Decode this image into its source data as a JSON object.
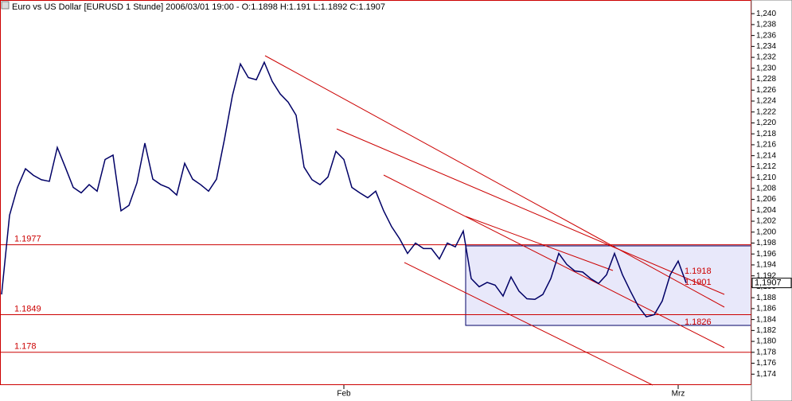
{
  "chart_data": {
    "type": "line",
    "title": "Euro vs US Dollar [EURUSD  1 Stunde] 2006/03/01 19:00 - O:1.1898 H:1.191 L:1.1892 C:1.1907",
    "categories": [
      null,
      null,
      null,
      null,
      null,
      null,
      null,
      null,
      null,
      null,
      null,
      null,
      null,
      null,
      null,
      null,
      null,
      null,
      null,
      null,
      null,
      null,
      null,
      null,
      null,
      null,
      null,
      null,
      null,
      null,
      null,
      null,
      null,
      null,
      null,
      null,
      null,
      null,
      null,
      null,
      null,
      null,
      null,
      "Feb",
      null,
      null,
      null,
      null,
      null,
      null,
      null,
      null,
      null,
      null,
      null,
      null,
      null,
      null,
      null,
      null,
      null,
      null,
      null,
      null,
      null,
      null,
      null,
      null,
      null,
      null,
      null,
      null,
      null,
      null,
      null,
      null,
      null,
      null,
      null,
      null,
      null,
      null,
      null,
      null,
      null,
      "Mrz",
      null
    ],
    "series": [
      {
        "name": "EURUSD",
        "color": "#000066",
        "values": [
          1.1886,
          1.2031,
          1.2082,
          1.2116,
          1.2104,
          1.2096,
          1.2093,
          1.2155,
          1.2119,
          1.2082,
          1.2072,
          1.2087,
          1.2075,
          1.2133,
          1.2141,
          1.2039,
          1.2049,
          1.209,
          1.2163,
          1.2097,
          1.2087,
          1.2081,
          1.2068,
          1.2126,
          1.2097,
          1.2087,
          1.2075,
          1.2097,
          1.217,
          1.225,
          1.2308,
          1.2283,
          1.2279,
          1.2311,
          1.2276,
          1.2253,
          1.2238,
          1.2214,
          1.2119,
          1.2096,
          1.2087,
          1.2101,
          1.2148,
          1.2133,
          1.2082,
          1.2072,
          1.2063,
          1.2075,
          1.2039,
          1.201,
          1.1988,
          1.1961,
          1.198,
          1.197,
          1.197,
          1.1951,
          1.198,
          1.1973,
          1.2002,
          1.1915,
          1.19,
          1.1908,
          1.1903,
          1.1883,
          1.1918,
          1.1892,
          1.1878,
          1.1877,
          1.1886,
          1.1915,
          1.1961,
          1.1941,
          1.1929,
          1.1927,
          1.1915,
          1.1906,
          1.1922,
          1.1961,
          1.1922,
          1.1892,
          1.1864,
          1.1845,
          1.1849,
          1.1874,
          1.1922,
          1.1947,
          1.1907
        ]
      }
    ],
    "current_price": {
      "value": 1.1907,
      "label": "1,1907"
    },
    "hlines": [
      1.1977,
      1.1849,
      1.178
    ],
    "annotations": [
      "1.1918",
      "1.1901",
      "1.1826"
    ],
    "line_color": "#cc0000",
    "ylim": [
      1.172,
      1.2425
    ],
    "yticks": [
      {
        "value": 1.174,
        "label": "1,174"
      },
      {
        "value": 1.176,
        "label": "1,176"
      },
      {
        "value": 1.178,
        "label": "1,178"
      },
      {
        "value": 1.18,
        "label": "1,180"
      },
      {
        "value": 1.182,
        "label": "1,182"
      },
      {
        "value": 1.184,
        "label": "1,184"
      },
      {
        "value": 1.186,
        "label": "1,186"
      },
      {
        "value": 1.188,
        "label": "1,188"
      },
      {
        "value": 1.19,
        "label": "1,190"
      },
      {
        "value": 1.192,
        "label": "1,192"
      },
      {
        "value": 1.194,
        "label": "1,194"
      },
      {
        "value": 1.196,
        "label": "1,196"
      },
      {
        "value": 1.198,
        "label": "1,198"
      },
      {
        "value": 1.2,
        "label": "1,200"
      },
      {
        "value": 1.202,
        "label": "1,202"
      },
      {
        "value": 1.204,
        "label": "1,204"
      },
      {
        "value": 1.206,
        "label": "1,206"
      },
      {
        "value": 1.208,
        "label": "1,208"
      },
      {
        "value": 1.21,
        "label": "1,210"
      },
      {
        "value": 1.212,
        "label": "1,212"
      },
      {
        "value": 1.214,
        "label": "1,214"
      },
      {
        "value": 1.216,
        "label": "1,216"
      },
      {
        "value": 1.218,
        "label": "1,218"
      },
      {
        "value": 1.22,
        "label": "1,220"
      },
      {
        "value": 1.222,
        "label": "1,222"
      },
      {
        "value": 1.224,
        "label": "1,224"
      },
      {
        "value": 1.226,
        "label": "1,226"
      },
      {
        "value": 1.228,
        "label": "1,228"
      },
      {
        "value": 1.23,
        "label": "1,230"
      },
      {
        "value": 1.232,
        "label": "1,232"
      },
      {
        "value": 1.234,
        "label": "1,234"
      },
      {
        "value": 1.236,
        "label": "1,236"
      },
      {
        "value": 1.238,
        "label": "1,238"
      },
      {
        "value": 1.24,
        "label": "1,240"
      }
    ]
  }
}
